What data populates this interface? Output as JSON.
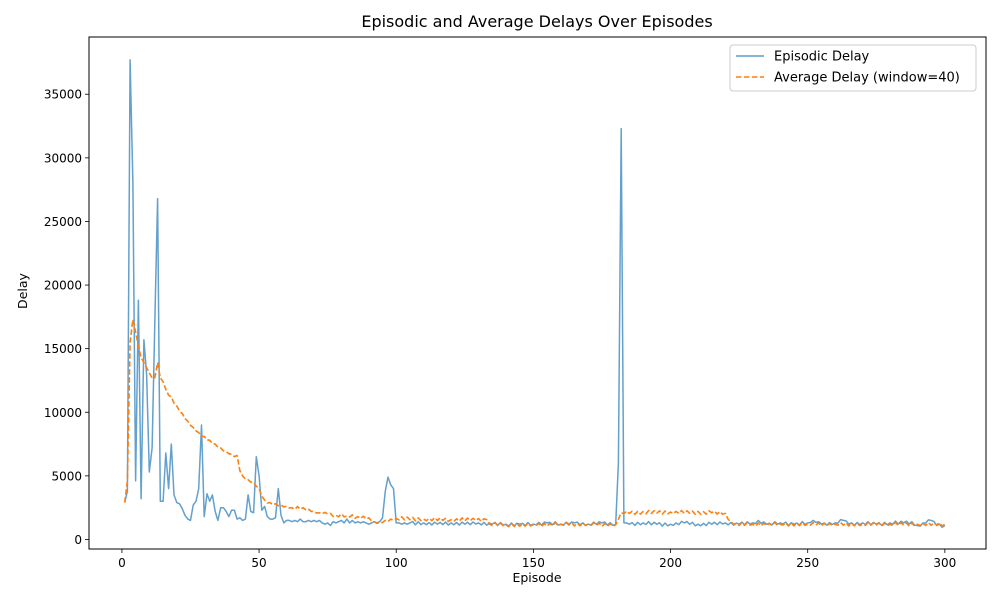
{
  "chart_data": {
    "type": "line",
    "title": "Episodic and Average Delays Over Episodes",
    "xlabel": "Episode",
    "ylabel": "Delay",
    "xlim": [
      -12,
      315
    ],
    "ylim": [
      -750,
      39500
    ],
    "xticks": [
      0,
      50,
      100,
      150,
      200,
      250,
      300
    ],
    "xtick_labels": [
      "0",
      "50",
      "100",
      "150",
      "200",
      "250",
      "300"
    ],
    "yticks": [
      0,
      5000,
      10000,
      15000,
      20000,
      25000,
      30000,
      35000
    ],
    "ytick_labels": [
      "0",
      "5000",
      "10000",
      "15000",
      "20000",
      "25000",
      "30000",
      "35000"
    ],
    "grid": false,
    "legend_position": "top-right",
    "series": [
      {
        "name": "Episodic Delay",
        "color": "#5b9bc9",
        "style": "solid",
        "keypoints": [
          [
            1,
            2900
          ],
          [
            2,
            3800
          ],
          [
            3,
            37700
          ],
          [
            4,
            28000
          ],
          [
            5,
            4600
          ],
          [
            6,
            18800
          ],
          [
            7,
            3200
          ],
          [
            8,
            15700
          ],
          [
            9,
            13000
          ],
          [
            10,
            5300
          ],
          [
            11,
            7200
          ],
          [
            12,
            17000
          ],
          [
            13,
            26800
          ],
          [
            14,
            3000
          ],
          [
            15,
            3000
          ],
          [
            16,
            6800
          ],
          [
            17,
            4000
          ],
          [
            18,
            7500
          ],
          [
            19,
            3500
          ],
          [
            20,
            2900
          ],
          [
            21,
            2800
          ],
          [
            23,
            1900
          ],
          [
            24,
            1600
          ],
          [
            25,
            1500
          ],
          [
            26,
            2700
          ],
          [
            27,
            3000
          ],
          [
            28,
            4000
          ],
          [
            29,
            9000
          ],
          [
            30,
            1800
          ],
          [
            31,
            3600
          ],
          [
            32,
            3000
          ],
          [
            33,
            3500
          ],
          [
            34,
            2200
          ],
          [
            35,
            1500
          ],
          [
            36,
            2500
          ],
          [
            37,
            2500
          ],
          [
            38,
            2200
          ],
          [
            39,
            1800
          ],
          [
            40,
            2300
          ],
          [
            41,
            2300
          ],
          [
            42,
            1600
          ],
          [
            43,
            1700
          ],
          [
            44,
            1500
          ],
          [
            45,
            1600
          ],
          [
            46,
            3500
          ],
          [
            47,
            2200
          ],
          [
            48,
            2100
          ],
          [
            49,
            6500
          ],
          [
            50,
            5000
          ],
          [
            51,
            2300
          ],
          [
            52,
            2600
          ],
          [
            53,
            1800
          ],
          [
            54,
            1600
          ],
          [
            55,
            1600
          ],
          [
            56,
            1700
          ],
          [
            57,
            4000
          ],
          [
            58,
            1900
          ],
          [
            59,
            1300
          ],
          [
            60,
            1500
          ],
          [
            61,
            1500
          ],
          [
            62,
            1400
          ],
          [
            63,
            1500
          ],
          [
            64,
            1400
          ],
          [
            65,
            1600
          ],
          [
            66,
            1400
          ],
          [
            67,
            1400
          ],
          [
            68,
            1500
          ],
          [
            69,
            1400
          ],
          [
            70,
            1500
          ],
          [
            71,
            1400
          ],
          [
            72,
            1500
          ],
          [
            73,
            1300
          ],
          [
            74,
            1200
          ],
          [
            75,
            1300
          ],
          [
            76,
            1100
          ],
          [
            77,
            1400
          ],
          [
            78,
            1300
          ],
          [
            79,
            1400
          ],
          [
            80,
            1500
          ],
          [
            81,
            1300
          ],
          [
            82,
            1600
          ],
          [
            83,
            1300
          ],
          [
            84,
            1500
          ],
          [
            85,
            1300
          ],
          [
            86,
            1400
          ],
          [
            87,
            1300
          ],
          [
            88,
            1400
          ],
          [
            89,
            1300
          ],
          [
            90,
            1200
          ],
          [
            91,
            1300
          ],
          [
            92,
            1400
          ],
          [
            93,
            1300
          ],
          [
            94,
            1400
          ],
          [
            95,
            1700
          ],
          [
            96,
            3800
          ],
          [
            97,
            4900
          ],
          [
            98,
            4300
          ],
          [
            99,
            4000
          ],
          [
            100,
            1300
          ],
          [
            101,
            1300
          ],
          [
            102,
            1200
          ],
          [
            103,
            1300
          ],
          [
            104,
            1200
          ],
          [
            105,
            1300
          ],
          [
            110,
            1300
          ],
          [
            115,
            1200
          ],
          [
            120,
            1300
          ],
          [
            125,
            1200
          ],
          [
            130,
            1300
          ],
          [
            135,
            1200
          ],
          [
            140,
            1200
          ],
          [
            145,
            1200
          ],
          [
            150,
            1200
          ],
          [
            155,
            1300
          ],
          [
            160,
            1200
          ],
          [
            165,
            1300
          ],
          [
            170,
            1200
          ],
          [
            175,
            1300
          ],
          [
            180,
            1200
          ],
          [
            181,
            6000
          ],
          [
            182,
            32300
          ],
          [
            183,
            1300
          ],
          [
            184,
            1300
          ],
          [
            185,
            1200
          ],
          [
            190,
            1300
          ],
          [
            195,
            1200
          ],
          [
            200,
            1200
          ],
          [
            205,
            1300
          ],
          [
            210,
            1200
          ],
          [
            215,
            1200
          ],
          [
            220,
            1300
          ],
          [
            225,
            1200
          ],
          [
            230,
            1300
          ],
          [
            232,
            1500
          ],
          [
            235,
            1200
          ],
          [
            240,
            1300
          ],
          [
            245,
            1200
          ],
          [
            250,
            1300
          ],
          [
            252,
            1500
          ],
          [
            255,
            1200
          ],
          [
            260,
            1300
          ],
          [
            263,
            1500
          ],
          [
            265,
            1200
          ],
          [
            270,
            1300
          ],
          [
            275,
            1200
          ],
          [
            280,
            1300
          ],
          [
            285,
            1300
          ],
          [
            288,
            1400
          ],
          [
            290,
            1100
          ],
          [
            293,
            1300
          ],
          [
            295,
            1500
          ],
          [
            297,
            1100
          ],
          [
            300,
            1100
          ]
        ]
      },
      {
        "name": "Average Delay (window=40)",
        "color": "#ff7f0e",
        "style": "dashed",
        "keypoints": [
          [
            1,
            2900
          ],
          [
            2,
            4600
          ],
          [
            3,
            15500
          ],
          [
            4,
            17300
          ],
          [
            5,
            16300
          ],
          [
            6,
            15200
          ],
          [
            7,
            14300
          ],
          [
            8,
            13900
          ],
          [
            9,
            13500
          ],
          [
            10,
            13100
          ],
          [
            11,
            12700
          ],
          [
            12,
            12700
          ],
          [
            13,
            13900
          ],
          [
            14,
            12700
          ],
          [
            15,
            12400
          ],
          [
            16,
            11800
          ],
          [
            18,
            11200
          ],
          [
            20,
            10500
          ],
          [
            22,
            9900
          ],
          [
            24,
            9300
          ],
          [
            26,
            8800
          ],
          [
            28,
            8400
          ],
          [
            30,
            8100
          ],
          [
            32,
            7800
          ],
          [
            34,
            7500
          ],
          [
            36,
            7200
          ],
          [
            38,
            6900
          ],
          [
            40,
            6700
          ],
          [
            42,
            6600
          ],
          [
            43,
            5400
          ],
          [
            44,
            5000
          ],
          [
            46,
            4700
          ],
          [
            48,
            4500
          ],
          [
            50,
            4000
          ],
          [
            52,
            3100
          ],
          [
            54,
            2900
          ],
          [
            56,
            2800
          ],
          [
            58,
            2700
          ],
          [
            60,
            2600
          ],
          [
            62,
            2500
          ],
          [
            66,
            2500
          ],
          [
            68,
            2400
          ],
          [
            70,
            2200
          ],
          [
            72,
            2100
          ],
          [
            75,
            2000
          ],
          [
            78,
            1900
          ],
          [
            82,
            1850
          ],
          [
            86,
            1800
          ],
          [
            90,
            1700
          ],
          [
            92,
            1400
          ],
          [
            94,
            1300
          ],
          [
            96,
            1500
          ],
          [
            98,
            1600
          ],
          [
            100,
            1650
          ],
          [
            110,
            1600
          ],
          [
            120,
            1550
          ],
          [
            133,
            1550
          ],
          [
            134,
            1200
          ],
          [
            140,
            1150
          ],
          [
            150,
            1150
          ],
          [
            160,
            1200
          ],
          [
            170,
            1200
          ],
          [
            180,
            1150
          ],
          [
            181,
            1600
          ],
          [
            182,
            2100
          ],
          [
            200,
            2150
          ],
          [
            215,
            2100
          ],
          [
            220,
            2050
          ],
          [
            222,
            1400
          ],
          [
            223,
            1200
          ],
          [
            230,
            1200
          ],
          [
            240,
            1200
          ],
          [
            250,
            1200
          ],
          [
            260,
            1200
          ],
          [
            270,
            1200
          ],
          [
            280,
            1200
          ],
          [
            290,
            1200
          ],
          [
            300,
            1200
          ]
        ]
      }
    ]
  }
}
